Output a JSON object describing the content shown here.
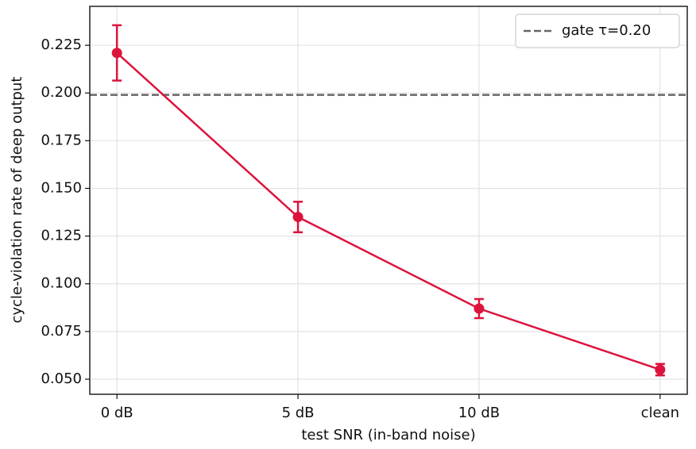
{
  "chart_data": {
    "type": "line",
    "categories": [
      "0 dB",
      "5 dB",
      "10 dB",
      "clean"
    ],
    "series": [
      {
        "color": "#dc143c",
        "values": [
          0.221,
          0.135,
          0.087,
          0.055
        ],
        "errors": [
          0.0145,
          0.008,
          0.005,
          0.003
        ]
      }
    ],
    "hlines": [
      {
        "name": "gate τ=0.20",
        "value": 0.199,
        "color": "#666666"
      }
    ],
    "xlabel": "test SNR (in-band noise)",
    "ylabel": "cycle-violation rate of deep output",
    "ylim": [
      0.0421,
      0.2454
    ],
    "yticks": [
      {
        "value": 0.05,
        "label": "0.050"
      },
      {
        "value": 0.075,
        "label": "0.075"
      },
      {
        "value": 0.1,
        "label": "0.100"
      },
      {
        "value": 0.125,
        "label": "0.125"
      },
      {
        "value": 0.15,
        "label": "0.150"
      },
      {
        "value": 0.175,
        "label": "0.175"
      },
      {
        "value": 0.2,
        "label": "0.200"
      },
      {
        "value": 0.225,
        "label": "0.225"
      }
    ],
    "grid": true,
    "legend": "upper right"
  }
}
